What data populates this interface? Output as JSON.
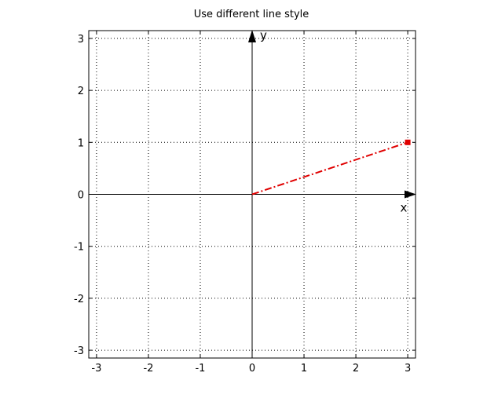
{
  "chart_data": {
    "type": "line",
    "title": "Use different line style",
    "xlabel": "x",
    "ylabel": "y",
    "xlim": [
      -3.15,
      3.15
    ],
    "ylim": [
      -3.15,
      3.15
    ],
    "xticks": [
      "-3",
      "-2",
      "-1",
      "0",
      "1",
      "2",
      "3"
    ],
    "yticks": [
      "-3",
      "-2",
      "-1",
      "0",
      "1",
      "2",
      "3"
    ],
    "grid": true,
    "series": [
      {
        "x": [
          0,
          3
        ],
        "y": [
          0,
          1
        ],
        "color": "#e00000",
        "line_style": "dash-dot",
        "end_marker": "square"
      }
    ]
  }
}
